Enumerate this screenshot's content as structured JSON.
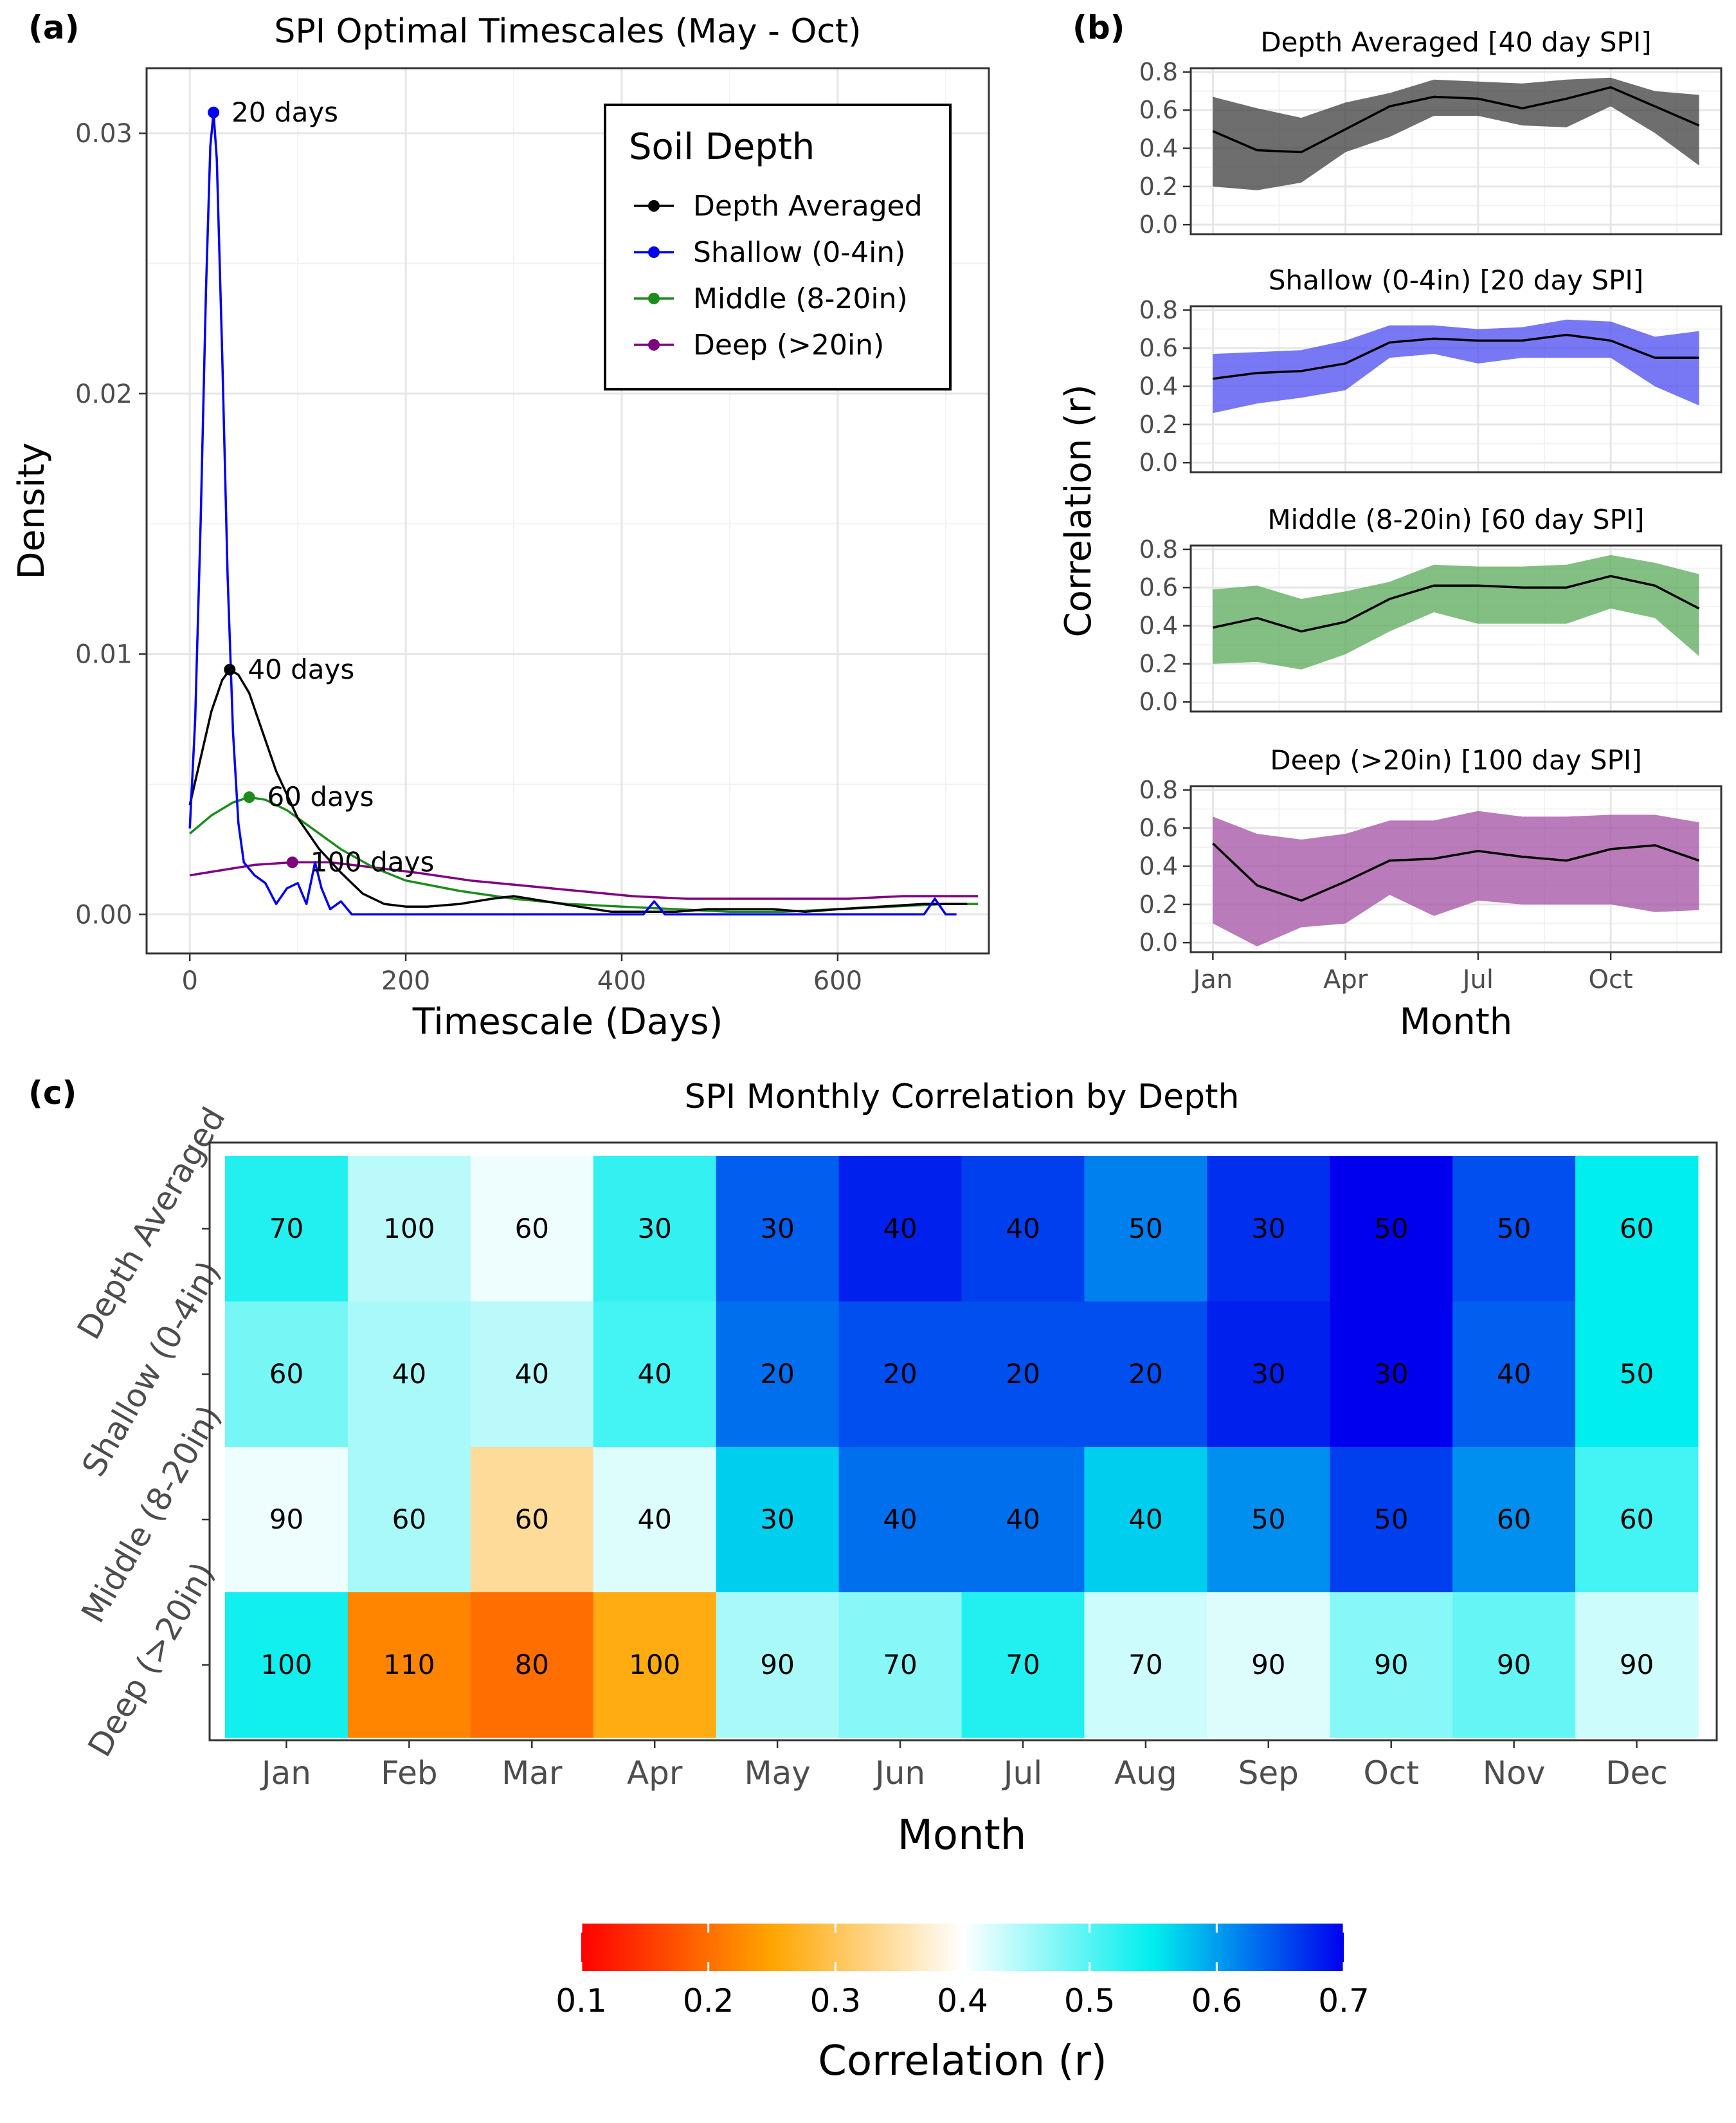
{
  "chart_data": [
    {
      "panel": "(a)",
      "type": "line",
      "title": "SPI Optimal Timescales (May - Oct)",
      "xlabel": "Timescale (Days)",
      "ylabel": "Density",
      "xlim": [
        -40,
        740
      ],
      "ylim": [
        -0.0015,
        0.0325
      ],
      "xticks": [
        0,
        200,
        400,
        600
      ],
      "yticks": [
        0.0,
        0.01,
        0.02,
        0.03
      ],
      "ytick_labels": [
        "0.00",
        "0.01",
        "0.02",
        "0.03"
      ],
      "grid": true,
      "legend": {
        "title": "Soil Depth",
        "placement": "top-right",
        "entries": [
          "Depth Averaged",
          "Shallow (0-4in)",
          "Middle (8-20in)",
          "Deep (>20in)"
        ]
      },
      "series": [
        {
          "name": "Depth Averaged",
          "color": "#000000",
          "peak": {
            "x": 37,
            "y": 0.0094,
            "label": "40 days"
          },
          "points": [
            [
              0,
              0.0042
            ],
            [
              10,
              0.006
            ],
            [
              20,
              0.0078
            ],
            [
              30,
              0.009
            ],
            [
              37,
              0.0094
            ],
            [
              45,
              0.0092
            ],
            [
              55,
              0.0085
            ],
            [
              65,
              0.0073
            ],
            [
              80,
              0.0055
            ],
            [
              100,
              0.0037
            ],
            [
              120,
              0.0025
            ],
            [
              140,
              0.0016
            ],
            [
              160,
              0.0008
            ],
            [
              180,
              0.0004
            ],
            [
              200,
              0.0003
            ],
            [
              220,
              0.0003
            ],
            [
              250,
              0.0004
            ],
            [
              280,
              0.0006
            ],
            [
              300,
              0.0007
            ],
            [
              330,
              0.0005
            ],
            [
              360,
              0.0003
            ],
            [
              390,
              0.0001
            ],
            [
              420,
              0.0001
            ],
            [
              450,
              0.0001
            ],
            [
              480,
              0.0002
            ],
            [
              510,
              0.0002
            ],
            [
              540,
              0.0002
            ],
            [
              570,
              0.0001
            ],
            [
              600,
              0.0002
            ],
            [
              640,
              0.0003
            ],
            [
              680,
              0.0004
            ],
            [
              720,
              0.0004
            ]
          ]
        },
        {
          "name": "Shallow (0-4in)",
          "color": "#0000ee",
          "peak": {
            "x": 22,
            "y": 0.0308,
            "label": "20 days"
          },
          "points": [
            [
              0,
              0.0033
            ],
            [
              5,
              0.0075
            ],
            [
              10,
              0.015
            ],
            [
              15,
              0.024
            ],
            [
              19,
              0.0295
            ],
            [
              22,
              0.0308
            ],
            [
              25,
              0.029
            ],
            [
              30,
              0.0215
            ],
            [
              35,
              0.013
            ],
            [
              40,
              0.007
            ],
            [
              45,
              0.0035
            ],
            [
              50,
              0.002
            ],
            [
              60,
              0.0015
            ],
            [
              70,
              0.0012
            ],
            [
              80,
              0.0004
            ],
            [
              90,
              0.001
            ],
            [
              100,
              0.0012
            ],
            [
              108,
              0.0004
            ],
            [
              116,
              0.002
            ],
            [
              122,
              0.001
            ],
            [
              130,
              0.0002
            ],
            [
              140,
              0.0005
            ],
            [
              150,
              0.0
            ],
            [
              200,
              0.0
            ],
            [
              300,
              0.0
            ],
            [
              400,
              0.0
            ],
            [
              420,
              0.0
            ],
            [
              430,
              0.0005
            ],
            [
              440,
              0.0
            ],
            [
              600,
              0.0
            ],
            [
              680,
              0.0
            ],
            [
              690,
              0.0006
            ],
            [
              700,
              0.0
            ],
            [
              710,
              0.0
            ]
          ]
        },
        {
          "name": "Middle (8-20in)",
          "color": "#1e8b1e",
          "peak": {
            "x": 55,
            "y": 0.0045,
            "label": "60 days"
          },
          "points": [
            [
              0,
              0.0031
            ],
            [
              20,
              0.0038
            ],
            [
              40,
              0.0043
            ],
            [
              55,
              0.0045
            ],
            [
              70,
              0.0044
            ],
            [
              90,
              0.004
            ],
            [
              110,
              0.0034
            ],
            [
              140,
              0.0025
            ],
            [
              170,
              0.0018
            ],
            [
              200,
              0.0013
            ],
            [
              250,
              0.0009
            ],
            [
              300,
              0.0006
            ],
            [
              350,
              0.0004
            ],
            [
              400,
              0.0003
            ],
            [
              450,
              0.0002
            ],
            [
              500,
              0.0001
            ],
            [
              550,
              0.0001
            ],
            [
              600,
              0.0002
            ],
            [
              650,
              0.0003
            ],
            [
              700,
              0.0004
            ],
            [
              730,
              0.0004
            ]
          ]
        },
        {
          "name": "Deep (>20in)",
          "color": "#800080",
          "peak": {
            "x": 95,
            "y": 0.002,
            "label": "100 days"
          },
          "points": [
            [
              0,
              0.0015
            ],
            [
              30,
              0.0017
            ],
            [
              60,
              0.0019
            ],
            [
              95,
              0.002
            ],
            [
              130,
              0.002
            ],
            [
              170,
              0.0018
            ],
            [
              210,
              0.0016
            ],
            [
              260,
              0.0013
            ],
            [
              310,
              0.0011
            ],
            [
              360,
              0.0009
            ],
            [
              410,
              0.0007
            ],
            [
              460,
              0.0006
            ],
            [
              510,
              0.0006
            ],
            [
              560,
              0.0006
            ],
            [
              610,
              0.0006
            ],
            [
              660,
              0.0007
            ],
            [
              700,
              0.0007
            ],
            [
              730,
              0.0007
            ]
          ]
        }
      ]
    },
    {
      "panel": "(b)",
      "type": "area",
      "xlabel": "Month",
      "ylabel": "Correlation (r)",
      "xlim": [
        0.5,
        12.5
      ],
      "ylim": [
        -0.05,
        0.82
      ],
      "xticks": [
        1,
        4,
        7,
        10
      ],
      "xtick_labels": [
        "Jan",
        "Apr",
        "Jul",
        "Oct"
      ],
      "yticks": [
        0.0,
        0.2,
        0.4,
        0.6,
        0.8
      ],
      "ytick_labels": [
        "0.0",
        "0.2",
        "0.4",
        "0.6",
        "0.8"
      ],
      "grid": true,
      "panels": [
        {
          "title": "Depth Averaged [40 day SPI]",
          "fill": "#3d3d3d",
          "mean": [
            0.49,
            0.39,
            0.38,
            0.5,
            0.62,
            0.67,
            0.66,
            0.61,
            0.66,
            0.72,
            0.62,
            0.52
          ],
          "lower": [
            0.2,
            0.18,
            0.22,
            0.38,
            0.46,
            0.57,
            0.57,
            0.52,
            0.51,
            0.62,
            0.48,
            0.31
          ],
          "upper": [
            0.67,
            0.61,
            0.56,
            0.64,
            0.69,
            0.76,
            0.75,
            0.74,
            0.76,
            0.77,
            0.7,
            0.68
          ]
        },
        {
          "title": "Shallow (0-4in) [20 day SPI]",
          "fill": "#4b4bf0",
          "mean": [
            0.44,
            0.47,
            0.48,
            0.52,
            0.63,
            0.65,
            0.64,
            0.64,
            0.67,
            0.64,
            0.55,
            0.55
          ],
          "lower": [
            0.26,
            0.31,
            0.34,
            0.38,
            0.55,
            0.57,
            0.52,
            0.55,
            0.55,
            0.55,
            0.4,
            0.3
          ],
          "upper": [
            0.57,
            0.58,
            0.59,
            0.64,
            0.72,
            0.72,
            0.7,
            0.71,
            0.75,
            0.74,
            0.66,
            0.69
          ]
        },
        {
          "title": "Middle (8-20in) [60 day SPI]",
          "fill": "#5aaa5a",
          "mean": [
            0.39,
            0.44,
            0.37,
            0.42,
            0.54,
            0.61,
            0.61,
            0.6,
            0.6,
            0.66,
            0.61,
            0.49
          ],
          "lower": [
            0.2,
            0.21,
            0.17,
            0.25,
            0.37,
            0.47,
            0.41,
            0.41,
            0.41,
            0.49,
            0.44,
            0.24
          ],
          "upper": [
            0.59,
            0.61,
            0.54,
            0.58,
            0.63,
            0.72,
            0.71,
            0.71,
            0.72,
            0.77,
            0.73,
            0.67
          ]
        },
        {
          "title": "Deep (>20in) [100 day SPI]",
          "fill": "#a24fa2",
          "mean": [
            0.52,
            0.3,
            0.22,
            0.32,
            0.43,
            0.44,
            0.48,
            0.45,
            0.43,
            0.49,
            0.51,
            0.43
          ],
          "lower": [
            0.1,
            -0.02,
            0.08,
            0.1,
            0.25,
            0.14,
            0.22,
            0.2,
            0.2,
            0.2,
            0.16,
            0.17
          ],
          "upper": [
            0.66,
            0.57,
            0.54,
            0.57,
            0.64,
            0.64,
            0.69,
            0.66,
            0.66,
            0.67,
            0.67,
            0.63
          ]
        }
      ]
    },
    {
      "panel": "(c)",
      "type": "heatmap",
      "title": "SPI Monthly Correlation by Depth",
      "xlabel": "Month",
      "months": [
        "Jan",
        "Feb",
        "Mar",
        "Apr",
        "May",
        "Jun",
        "Jul",
        "Aug",
        "Sep",
        "Oct",
        "Nov",
        "Dec"
      ],
      "rows": [
        "Depth Averaged",
        "Shallow (0-4in)",
        "Middle (8-20in)",
        "Deep (>20in)"
      ],
      "labels": [
        [
          "70",
          "100",
          "60",
          "30",
          "30",
          "40",
          "40",
          "50",
          "30",
          "50",
          "50",
          "60"
        ],
        [
          "60",
          "40",
          "40",
          "40",
          "20",
          "20",
          "20",
          "20",
          "30",
          "30",
          "40",
          "50"
        ],
        [
          "90",
          "60",
          "60",
          "40",
          "30",
          "40",
          "40",
          "40",
          "50",
          "50",
          "60",
          "60"
        ],
        [
          "100",
          "110",
          "80",
          "100",
          "90",
          "70",
          "70",
          "70",
          "90",
          "90",
          "90",
          "90"
        ]
      ],
      "correlation": [
        [
          0.53,
          0.44,
          0.41,
          0.52,
          0.64,
          0.68,
          0.66,
          0.62,
          0.67,
          0.72,
          0.65,
          0.55
        ],
        [
          0.48,
          0.45,
          0.44,
          0.51,
          0.63,
          0.65,
          0.65,
          0.65,
          0.68,
          0.72,
          0.64,
          0.55
        ],
        [
          0.41,
          0.45,
          0.34,
          0.42,
          0.57,
          0.63,
          0.63,
          0.57,
          0.61,
          0.66,
          0.61,
          0.51
        ],
        [
          0.54,
          0.22,
          0.2,
          0.26,
          0.45,
          0.47,
          0.53,
          0.43,
          0.42,
          0.47,
          0.49,
          0.43
        ]
      ],
      "legend": {
        "title": "Correlation (r)",
        "placement": "bottom",
        "range": [
          0.1,
          0.7
        ],
        "ticks": [
          0.1,
          0.2,
          0.3,
          0.4,
          0.5,
          0.6,
          0.7
        ],
        "tick_labels": [
          "0.1",
          "0.2",
          "0.3",
          "0.4",
          "0.5",
          "0.6",
          "0.7"
        ],
        "colors": [
          "#ff0000",
          "#ffa500",
          "#ffffff",
          "#00eeee",
          "#0000ee"
        ]
      }
    }
  ]
}
